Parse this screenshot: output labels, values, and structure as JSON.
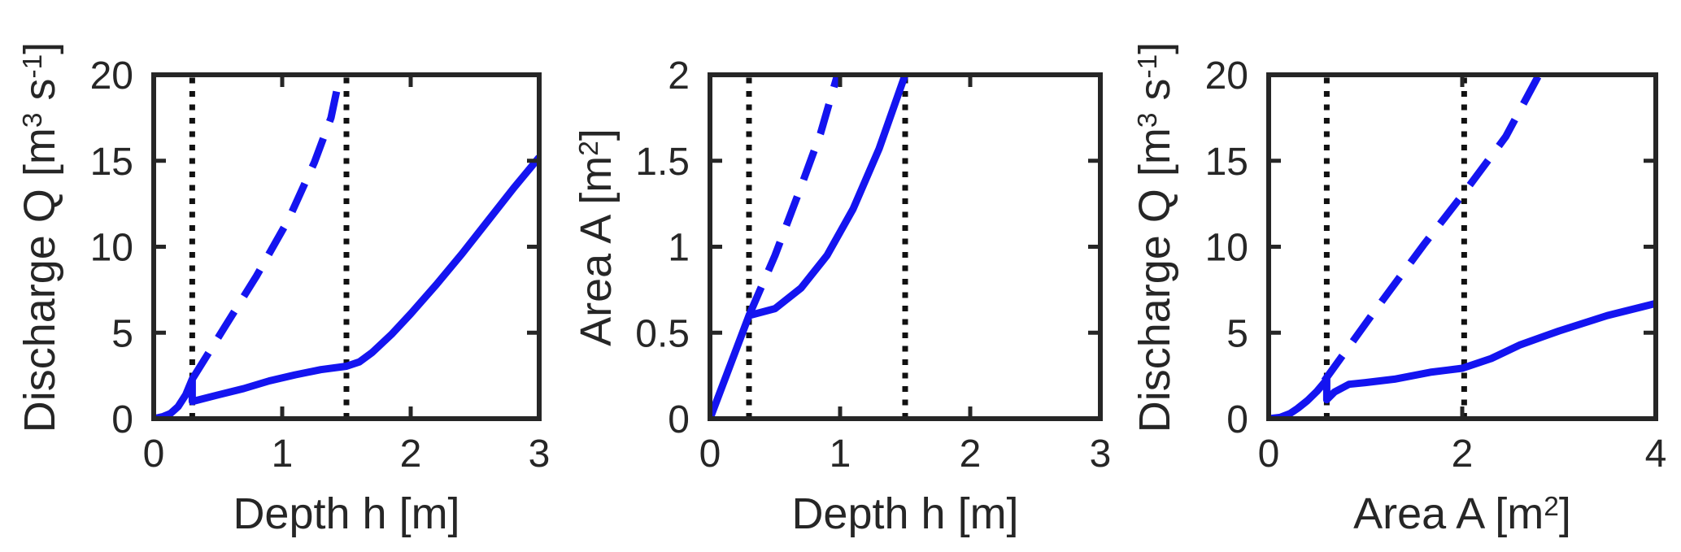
{
  "figure": {
    "background": "#ffffff",
    "axis_color": "#262626",
    "curve_color": "#1414f0",
    "vline_color": "#111111"
  },
  "chart_data": [
    {
      "type": "line",
      "xlabel": "Depth h [m]",
      "ylabel": "Discharge Q [m³ s⁻¹]",
      "xlabel_parts": [
        "Depth h [m]"
      ],
      "ylabel_parts": [
        "Discharge Q [m",
        "3",
        " s",
        "-1",
        "]"
      ],
      "xlim": [
        0,
        3
      ],
      "ylim": [
        0,
        20
      ],
      "xticks": [
        0,
        1,
        2,
        3
      ],
      "xtick_labels": [
        "0",
        "1",
        "2",
        "3"
      ],
      "yticks": [
        0,
        5,
        10,
        15,
        20
      ],
      "ytick_labels": [
        "0",
        "5",
        "10",
        "15",
        "20"
      ],
      "grid": false,
      "legend": null,
      "vlines": {
        "style": "dotted",
        "color": "#111111",
        "x": [
          0.3,
          1.5
        ]
      },
      "series": [
        {
          "id": "solid-curve",
          "style": "solid",
          "color": "#1414f0",
          "points": [
            [
              0,
              0
            ],
            [
              0.07,
              0.12
            ],
            [
              0.13,
              0.3
            ],
            [
              0.19,
              0.7
            ],
            [
              0.25,
              1.4
            ],
            [
              0.3,
              2.3
            ],
            [
              0.3,
              1.0
            ],
            [
              0.5,
              1.38
            ],
            [
              0.7,
              1.75
            ],
            [
              0.9,
              2.2
            ],
            [
              1.1,
              2.55
            ],
            [
              1.3,
              2.85
            ],
            [
              1.5,
              3.05
            ],
            [
              1.6,
              3.3
            ],
            [
              1.7,
              3.85
            ],
            [
              1.85,
              4.9
            ],
            [
              2.0,
              6.1
            ],
            [
              2.2,
              7.8
            ],
            [
              2.4,
              9.6
            ],
            [
              2.6,
              11.5
            ],
            [
              2.8,
              13.4
            ],
            [
              3.0,
              15.2
            ]
          ]
        },
        {
          "id": "dashed-curve",
          "style": "dashed",
          "color": "#1414f0",
          "points": [
            [
              0.3,
              2.3
            ],
            [
              0.55,
              5.3
            ],
            [
              0.8,
              8.3
            ],
            [
              1.05,
              11.6
            ],
            [
              1.25,
              14.9
            ],
            [
              1.38,
              17.5
            ],
            [
              1.47,
              20.7
            ]
          ]
        }
      ]
    },
    {
      "type": "line",
      "xlabel": "Depth h [m]",
      "ylabel": "Area A [m²]",
      "xlabel_parts": [
        "Depth h [m]"
      ],
      "ylabel_parts": [
        "Area A [m",
        "2",
        "]"
      ],
      "xlim": [
        0,
        3
      ],
      "ylim": [
        0,
        2
      ],
      "xticks": [
        0,
        1,
        2,
        3
      ],
      "xtick_labels": [
        "0",
        "1",
        "2",
        "3"
      ],
      "yticks": [
        0,
        0.5,
        1,
        1.5,
        2
      ],
      "ytick_labels": [
        "0",
        "0.5",
        "1",
        "1.5",
        "2"
      ],
      "grid": false,
      "legend": null,
      "vlines": {
        "style": "dotted",
        "color": "#111111",
        "x": [
          0.3,
          1.5
        ]
      },
      "series": [
        {
          "id": "solid-curve",
          "style": "solid",
          "color": "#1414f0",
          "points": [
            [
              0,
              0
            ],
            [
              0.3,
              0.6
            ],
            [
              0.5,
              0.64
            ],
            [
              0.7,
              0.76
            ],
            [
              0.9,
              0.95
            ],
            [
              1.1,
              1.22
            ],
            [
              1.3,
              1.57
            ],
            [
              1.5,
              2.0
            ],
            [
              1.53,
              2.12
            ]
          ]
        },
        {
          "id": "dashed-curve",
          "style": "dashed",
          "color": "#1414f0",
          "points": [
            [
              0.3,
              0.6
            ],
            [
              0.5,
              0.95
            ],
            [
              0.7,
              1.35
            ],
            [
              0.85,
              1.66
            ],
            [
              0.98,
              2.0
            ],
            [
              1.04,
              2.18
            ]
          ]
        }
      ]
    },
    {
      "type": "line",
      "xlabel": "Area A [m²]",
      "ylabel": "Discharge Q [m³ s⁻¹]",
      "xlabel_parts": [
        "Area A [m",
        "2",
        "]"
      ],
      "ylabel_parts": [
        "Discharge Q [m",
        "3",
        " s",
        "-1",
        "]"
      ],
      "xlim": [
        0,
        4
      ],
      "ylim": [
        0,
        20
      ],
      "xticks": [
        0,
        2,
        4
      ],
      "xtick_labels": [
        "0",
        "2",
        "4"
      ],
      "yticks": [
        0,
        5,
        10,
        15,
        20
      ],
      "ytick_labels": [
        "0",
        "5",
        "10",
        "15",
        "20"
      ],
      "grid": false,
      "legend": null,
      "vlines": {
        "style": "dotted",
        "color": "#111111",
        "x": [
          0.6,
          2.02
        ]
      },
      "series": [
        {
          "id": "solid-curve",
          "style": "solid",
          "color": "#1414f0",
          "points": [
            [
              0,
              0
            ],
            [
              0.12,
              0.08
            ],
            [
              0.22,
              0.3
            ],
            [
              0.3,
              0.6
            ],
            [
              0.4,
              1.05
            ],
            [
              0.5,
              1.6
            ],
            [
              0.6,
              2.27
            ],
            [
              0.6,
              1.1
            ],
            [
              0.68,
              1.55
            ],
            [
              0.83,
              2.0
            ],
            [
              1.0,
              2.1
            ],
            [
              1.3,
              2.3
            ],
            [
              1.67,
              2.7
            ],
            [
              2.0,
              2.93
            ],
            [
              2.3,
              3.5
            ],
            [
              2.6,
              4.3
            ],
            [
              3.0,
              5.1
            ],
            [
              3.5,
              6.0
            ],
            [
              4.0,
              6.7
            ]
          ]
        },
        {
          "id": "dashed-curve",
          "style": "dashed",
          "color": "#1414f0",
          "points": [
            [
              0.575,
              2.2
            ],
            [
              1.1,
              6.3
            ],
            [
              1.6,
              10.1
            ],
            [
              2.0,
              13.0
            ],
            [
              2.45,
              16.4
            ],
            [
              2.85,
              20.6
            ]
          ]
        }
      ]
    }
  ]
}
